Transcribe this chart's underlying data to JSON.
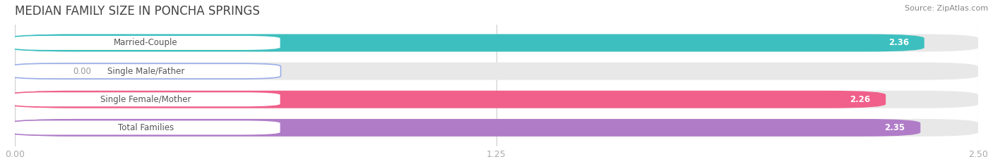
{
  "title": "MEDIAN FAMILY SIZE IN PONCHA SPRINGS",
  "source": "Source: ZipAtlas.com",
  "categories": [
    "Married-Couple",
    "Single Male/Father",
    "Single Female/Mother",
    "Total Families"
  ],
  "values": [
    2.36,
    0.0,
    2.26,
    2.35
  ],
  "bar_colors": [
    "#3dbfbf",
    "#9aaee8",
    "#f0608a",
    "#b07cc8"
  ],
  "bar_bg_colors": [
    "#ebebeb",
    "#ebebeb",
    "#ebebeb",
    "#ebebeb"
  ],
  "xlim": [
    0,
    2.5
  ],
  "xticks": [
    0.0,
    1.25,
    2.5
  ],
  "xtick_labels": [
    "0.00",
    "1.25",
    "2.50"
  ],
  "figsize": [
    14.06,
    2.33
  ],
  "dpi": 100,
  "value_fontsize": 8.5,
  "label_fontsize": 8.5,
  "title_fontsize": 12,
  "source_fontsize": 8
}
